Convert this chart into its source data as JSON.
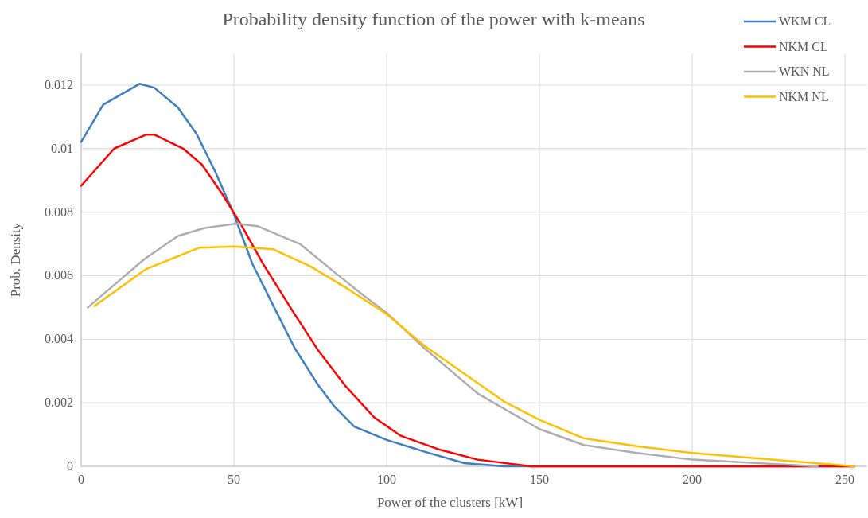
{
  "chart_data": {
    "type": "line",
    "title": "Probability density function of the power with k-means",
    "xlabel": "Power of the clusters [kW]",
    "ylabel": "Prob. Density",
    "xlim": [
      0,
      257
    ],
    "xticks": [
      0,
      50,
      100,
      150,
      200,
      250
    ],
    "ylim": [
      0,
      0.013
    ],
    "yticks": [
      0,
      0.002,
      0.004,
      0.006,
      0.008,
      0.01,
      0.012
    ],
    "grid": true,
    "legend": "top right",
    "marker": "none",
    "line_style": "solid",
    "series": [
      {
        "name": "WKM CL",
        "color": "#3d7fc0",
        "x": [
          0,
          7.2,
          19.1,
          23.9,
          31.7,
          37.8,
          43.8,
          49.9,
          56,
          63.8,
          70,
          77.7,
          82.9,
          87.2,
          89.4,
          100,
          112.4,
          125.4,
          138.4,
          150,
          253
        ],
        "values": [
          0.01021,
          0.01138,
          0.01204,
          0.01192,
          0.01129,
          0.01046,
          0.00929,
          0.00796,
          0.00638,
          0.00488,
          0.0037,
          0.00254,
          0.00188,
          0.00146,
          0.00125,
          0.00083,
          0.00046,
          0.0001,
          0,
          0,
          0
        ]
      },
      {
        "name": "NKM CL",
        "color": "#ff0000",
        "x": [
          0,
          10.8,
          21.3,
          23.9,
          33.4,
          39.5,
          46.4,
          52.5,
          59.5,
          69,
          77.7,
          86.4,
          95.9,
          104.6,
          116.8,
          129.8,
          147.2,
          253
        ],
        "values": [
          0.00883,
          0.01,
          0.01044,
          0.01044,
          0.01,
          0.0095,
          0.00854,
          0.00758,
          0.00638,
          0.00492,
          0.00363,
          0.00254,
          0.00154,
          0.00096,
          0.00054,
          0.00021,
          0,
          0
        ]
      },
      {
        "name": "WKN NL",
        "color": "#aeaeae",
        "x": [
          2.2,
          20.4,
          31.7,
          40.4,
          50.8,
          57.7,
          71.6,
          83.8,
          92.4,
          100,
          112.4,
          129.8,
          150,
          164.5,
          181.9,
          200,
          241
        ],
        "values": [
          0.005,
          0.0065,
          0.00725,
          0.0075,
          0.00764,
          0.00756,
          0.007,
          0.00604,
          0.00538,
          0.00483,
          0.00371,
          0.00229,
          0.00117,
          0.00067,
          0.00042,
          0.00021,
          0
        ]
      },
      {
        "name": "NKM NL",
        "color": "#ffc000",
        "x": [
          4.3,
          21.3,
          38.6,
          49.9,
          62.9,
          75.1,
          87,
          100,
          112.4,
          138.4,
          150,
          164.5,
          181.9,
          200,
          253
        ],
        "values": [
          0.00504,
          0.00621,
          0.00688,
          0.00692,
          0.00683,
          0.00629,
          0.0056,
          0.00479,
          0.00379,
          0.00204,
          0.00146,
          0.00088,
          0.00063,
          0.00042,
          0
        ]
      }
    ]
  }
}
